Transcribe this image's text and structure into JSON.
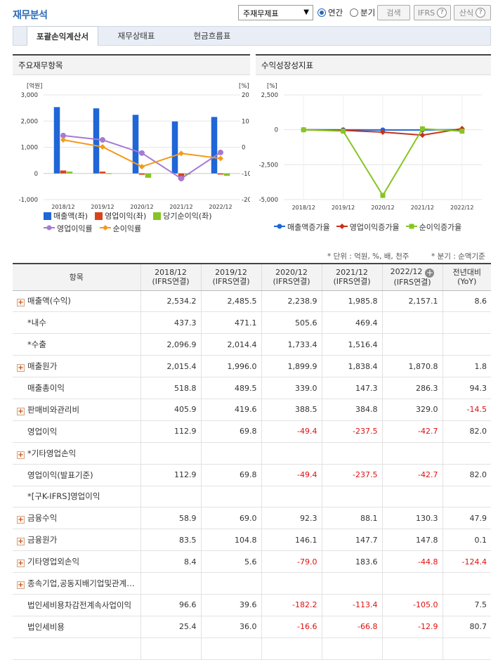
{
  "header": {
    "title": "재무분석",
    "select_value": "주재무제표",
    "radio_annual": "연간",
    "radio_quarter": "분기",
    "search_btn": "검색",
    "ifrs_btn": "IFRS",
    "formula_btn": "산식"
  },
  "tabs": [
    {
      "label": "포괄손익계산서"
    },
    {
      "label": "재무상태표"
    },
    {
      "label": "현금흐름표"
    }
  ],
  "panel_left": {
    "title": "주요재무항목"
  },
  "panel_right": {
    "title": "수익성장성지표"
  },
  "chart_data": [
    {
      "type": "bar",
      "categories": [
        "2018/12",
        "2019/12",
        "2020/12",
        "2021/12",
        "2022/12"
      ],
      "ylabel_left": "[억원]",
      "ylabel_right": "[%]",
      "ylim_left": [
        -1000,
        3000
      ],
      "ylim_right": [
        -20,
        20
      ],
      "yticks_left": [
        "3,000",
        "2,000",
        "1,000",
        "0",
        "-1,000"
      ],
      "yticks_right": [
        "20",
        "10",
        "0",
        "-10",
        "-20"
      ],
      "series": [
        {
          "name": "매출액(좌)",
          "kind": "bar",
          "axis": "left",
          "color": "#1f66d6",
          "values": [
            2534.2,
            2485.5,
            2238.9,
            1985.8,
            2157.1
          ]
        },
        {
          "name": "영업이익(좌)",
          "kind": "bar",
          "axis": "left",
          "color": "#d9431a",
          "values": [
            112.9,
            69.8,
            -49.4,
            -237.5,
            -42.7
          ]
        },
        {
          "name": "당기순이익(좌)",
          "kind": "bar",
          "axis": "left",
          "color": "#86c523",
          "values": [
            71.2,
            3.6,
            -165.6,
            -46.6,
            -92.1
          ]
        },
        {
          "name": "영업이익률",
          "kind": "line",
          "axis": "right",
          "color": "#a77ad4",
          "values": [
            4.45,
            2.81,
            -2.21,
            -11.96,
            -1.98
          ]
        },
        {
          "name": "순이익률",
          "kind": "line",
          "axis": "right",
          "color": "#f39a1a",
          "values": [
            2.81,
            0.14,
            -7.4,
            -2.35,
            -4.27
          ]
        }
      ]
    },
    {
      "type": "line",
      "categories": [
        "2018/12",
        "2019/12",
        "2020/12",
        "2021/12",
        "2022/12"
      ],
      "ylabel": "[%]",
      "ylim": [
        -5000,
        2500
      ],
      "yticks": [
        "2,500",
        "0",
        "-2,500",
        "-5,000"
      ],
      "series": [
        {
          "name": "매출액증가율",
          "color": "#1f66d6",
          "values": [
            null,
            -1.92,
            -9.92,
            -11.31,
            8.63
          ]
        },
        {
          "name": "영업이익증가율",
          "color": "#c8321a",
          "values": [
            null,
            -38.18,
            -170.77,
            -380.77,
            82.02
          ]
        },
        {
          "name": "순이익증가율",
          "color": "#86c523",
          "values": [
            null,
            -94.94,
            -4700.0,
            71.86,
            -97.64
          ]
        }
      ]
    }
  ],
  "notes": {
    "unit": "* 단위 : 억원, %, 배, 천주",
    "quarter": "* 분기 : 순액기준"
  },
  "table": {
    "headers": [
      {
        "line1": "항목",
        "line2": ""
      },
      {
        "line1": "2018/12",
        "line2": "(IFRS연결)"
      },
      {
        "line1": "2019/12",
        "line2": "(IFRS연결)"
      },
      {
        "line1": "2020/12",
        "line2": "(IFRS연결)"
      },
      {
        "line1": "2021/12",
        "line2": "(IFRS연결)"
      },
      {
        "line1": "2022/12",
        "line2": "(IFRS연결)"
      },
      {
        "line1": "전년대비",
        "line2": "(YoY)"
      }
    ],
    "rows": [
      {
        "label": "매출액(수익)",
        "expand": true,
        "values": [
          "2,534.2",
          "2,485.5",
          "2,238.9",
          "1,985.8",
          "2,157.1",
          "8.6"
        ]
      },
      {
        "label": "*내수",
        "expand": false,
        "values": [
          "437.3",
          "471.1",
          "505.6",
          "469.4",
          "",
          ""
        ]
      },
      {
        "label": "*수출",
        "expand": false,
        "values": [
          "2,096.9",
          "2,014.4",
          "1,733.4",
          "1,516.4",
          "",
          ""
        ]
      },
      {
        "label": "매출원가",
        "expand": true,
        "values": [
          "2,015.4",
          "1,996.0",
          "1,899.9",
          "1,838.4",
          "1,870.8",
          "1.8"
        ]
      },
      {
        "label": "매출총이익",
        "expand": false,
        "values": [
          "518.8",
          "489.5",
          "339.0",
          "147.3",
          "286.3",
          "94.3"
        ]
      },
      {
        "label": "판매비와관리비",
        "expand": true,
        "values": [
          "405.9",
          "419.6",
          "388.5",
          "384.8",
          "329.0",
          "-14.5"
        ]
      },
      {
        "label": "영업이익",
        "expand": false,
        "values": [
          "112.9",
          "69.8",
          "-49.4",
          "-237.5",
          "-42.7",
          "82.0"
        ]
      },
      {
        "label": "*기타영업손익",
        "expand": true,
        "values": [
          "",
          "",
          "",
          "",
          "",
          ""
        ]
      },
      {
        "label": "영업이익(발표기준)",
        "expand": false,
        "values": [
          "112.9",
          "69.8",
          "-49.4",
          "-237.5",
          "-42.7",
          "82.0"
        ]
      },
      {
        "label": "*[구K-IFRS]영업이익",
        "expand": false,
        "values": [
          "",
          "",
          "",
          "",
          "",
          ""
        ]
      },
      {
        "label": "금융수익",
        "expand": true,
        "values": [
          "58.9",
          "69.0",
          "92.3",
          "88.1",
          "130.3",
          "47.9"
        ]
      },
      {
        "label": "금융원가",
        "expand": true,
        "values": [
          "83.5",
          "104.8",
          "146.1",
          "147.7",
          "147.8",
          "0.1"
        ]
      },
      {
        "label": "기타영업외손익",
        "expand": true,
        "values": [
          "8.4",
          "5.6",
          "-79.0",
          "183.6",
          "-44.8",
          "-124.4"
        ]
      },
      {
        "label": "종속기업,공동지배기업및관계기업관련손익",
        "expand": true,
        "values": [
          "",
          "",
          "",
          "",
          "",
          ""
        ]
      },
      {
        "label": "법인세비용차감전계속사업이익",
        "expand": false,
        "values": [
          "96.6",
          "39.6",
          "-182.2",
          "-113.4",
          "-105.0",
          "7.5"
        ]
      },
      {
        "label": "법인세비용",
        "expand": false,
        "values": [
          "25.4",
          "36.0",
          "-16.6",
          "-66.8",
          "-12.9",
          "80.7"
        ]
      },
      {
        "label": "",
        "expand": false,
        "values": [
          "",
          "",
          "",
          "",
          "",
          ""
        ]
      }
    ]
  }
}
